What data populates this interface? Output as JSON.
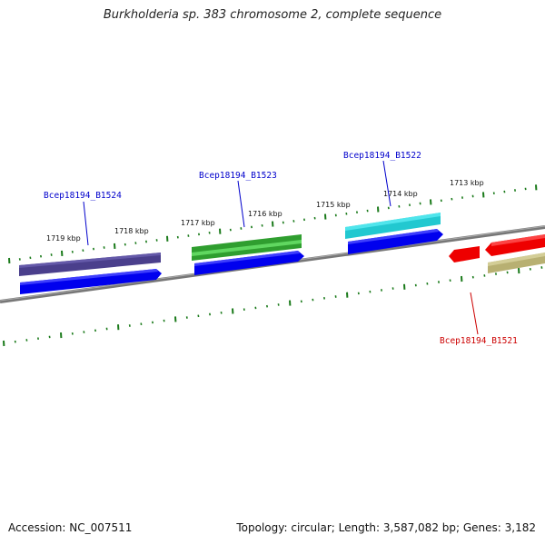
{
  "header": {
    "title": "Burkholderia sp. 383 chromosome 2, complete sequence"
  },
  "footer": {
    "accession": "Accession: NC_007511",
    "summary": "Topology: circular; Length: 3,587,082 bp; Genes: 3,182"
  },
  "ticks": [
    {
      "label": "1719 kbp"
    },
    {
      "label": "1718 kbp"
    },
    {
      "label": "1717 kbp"
    },
    {
      "label": "1716 kbp"
    },
    {
      "label": "1715 kbp"
    },
    {
      "label": "1714 kbp"
    },
    {
      "label": "1713 kbp"
    }
  ],
  "genes": [
    {
      "label": "Bcep18194_B1524",
      "color": "#0000cc"
    },
    {
      "label": "Bcep18194_B1523",
      "color": "#0000cc"
    },
    {
      "label": "Bcep18194_B1522",
      "color": "#0000cc"
    },
    {
      "label": "Bcep18194_B1521",
      "color": "#cc0000"
    }
  ],
  "colors": {
    "backbone": "#7a7a7a",
    "ticks": "#1a7a1a",
    "feature_dark_slate": "#4a3f8c",
    "feature_green": "#2f9e2f",
    "feature_cyan": "#22c8d0",
    "feature_blue": "#0000ee",
    "feature_red": "#ee0000",
    "feature_khaki": "#b8b072"
  }
}
